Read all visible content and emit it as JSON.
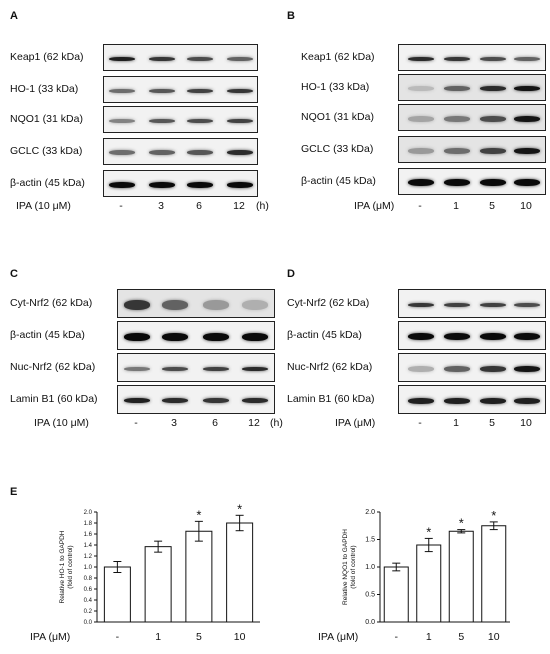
{
  "panels": [
    {
      "letter": "A",
      "rows": [
        "Keap1 (62 kDa)",
        "HO-1 (33 kDa)",
        "NQO1 (31 kDa)",
        "GCLC (33 kDa)",
        "β-actin (45 kDa)"
      ],
      "treatment": "IPA (10 μM)",
      "lanes": [
        "-",
        "3",
        "6",
        "12"
      ],
      "unit": "(h)"
    },
    {
      "letter": "B",
      "rows": [
        "Keap1 (62 kDa)",
        "HO-1 (33 kDa)",
        "NQO1 (31 kDa)",
        "GCLC (33 kDa)",
        "β-actin (45 kDa)"
      ],
      "treatment": "IPA (μM)",
      "lanes": [
        "-",
        "1",
        "5",
        "10"
      ],
      "unit": ""
    },
    {
      "letter": "C",
      "rows": [
        "Cyt-Nrf2 (62 kDa)",
        "β-actin (45 kDa)",
        "Nuc-Nrf2 (62 kDa)",
        "Lamin B1 (60 kDa)"
      ],
      "treatment": "IPA (10 μM)",
      "lanes": [
        "-",
        "3",
        "6",
        "12"
      ],
      "unit": "(h)"
    },
    {
      "letter": "D",
      "rows": [
        "Cyt-Nrf2 (62 kDa)",
        "β-actin (45 kDa)",
        "Nuc-Nrf2 (62 kDa)",
        "Lamin B1 (60 kDa)"
      ],
      "treatment": "IPA (μM)",
      "lanes": [
        "-",
        "1",
        "5",
        "10"
      ],
      "unit": ""
    }
  ],
  "panel_e": {
    "letter": "E",
    "treatment": "IPA (μM)"
  },
  "chart_data": [
    {
      "type": "bar",
      "categories": [
        "-",
        "1",
        "5",
        "10"
      ],
      "values": [
        1.0,
        1.37,
        1.65,
        1.8
      ],
      "errors": [
        0.1,
        0.1,
        0.18,
        0.14
      ],
      "significance": [
        "",
        "",
        "*",
        "*"
      ],
      "ylabel": "Relative HO-1 to GAPDH\n(fold of control)",
      "ylim": [
        0.0,
        2.0
      ],
      "yticks": [
        "0.0",
        "0.2",
        "0.4",
        "0.6",
        "0.8",
        "1.0",
        "1.2",
        "1.4",
        "1.6",
        "1.8",
        "2.0"
      ],
      "xlabel": "IPA (μM)"
    },
    {
      "type": "bar",
      "categories": [
        "-",
        "1",
        "5",
        "10"
      ],
      "values": [
        1.0,
        1.4,
        1.65,
        1.75
      ],
      "errors": [
        0.07,
        0.12,
        0.03,
        0.07
      ],
      "significance": [
        "",
        "*",
        "*",
        "*"
      ],
      "ylabel": "Relative NQO1 to GAPDH\n(fold of control)",
      "ylim": [
        0.0,
        2.0
      ],
      "yticks": [
        "0.0",
        "0.5",
        "1.0",
        "1.5",
        "2.0"
      ],
      "xlabel": "IPA (μM)"
    }
  ]
}
